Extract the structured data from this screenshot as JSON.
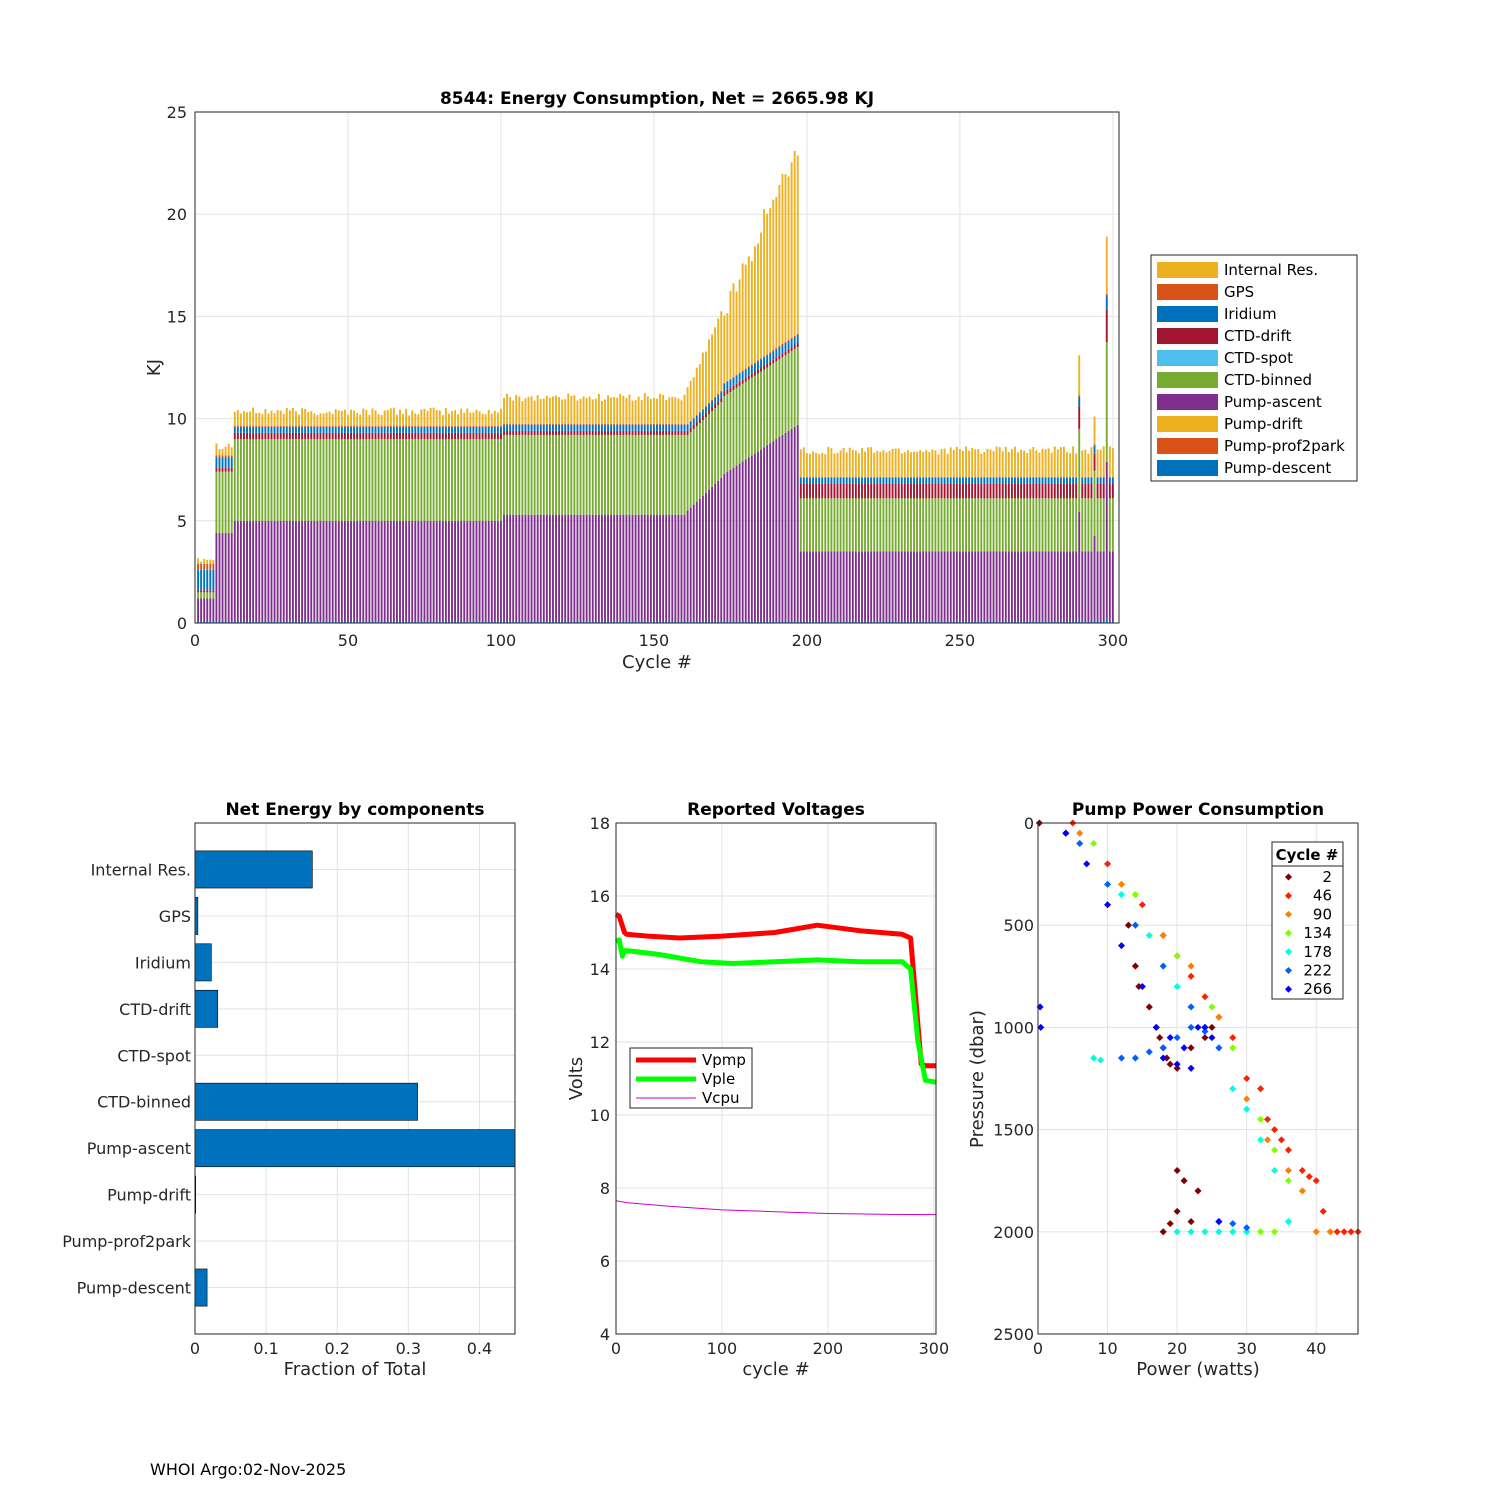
{
  "footer": "WHOI Argo:02-Nov-2025",
  "chart_data": [
    {
      "type": "bar",
      "stacked": true,
      "title": "8544: Energy Consumption,  Net = 2665.98 KJ",
      "xlabel": "Cycle #",
      "ylabel": "KJ",
      "xlim": [
        0,
        302
      ],
      "ylim": [
        0,
        25
      ],
      "xticks": [
        0,
        50,
        100,
        150,
        200,
        250,
        300
      ],
      "yticks": [
        0,
        5,
        10,
        15,
        20,
        25
      ],
      "grid": true,
      "legend_position": "outside-right",
      "legend": [
        "Internal Res.",
        "GPS",
        "Iridium",
        "CTD-drift",
        "CTD-spot",
        "CTD-binned",
        "Pump-ascent",
        "Pump-drift",
        "Pump-prof2park",
        "Pump-descent"
      ],
      "colors": {
        "Internal Res.": "#EDB120",
        "GPS": "#D95319",
        "Iridium": "#0072BD",
        "CTD-drift": "#A2142F",
        "CTD-spot": "#4DBEEE",
        "CTD-binned": "#77AC30",
        "Pump-ascent": "#7E2F8E",
        "Pump-drift": "#EDB120",
        "Pump-prof2park": "#D95319",
        "Pump-descent": "#0072BD"
      },
      "stack_order": [
        "Pump-descent",
        "Pump-prof2park",
        "Pump-drift",
        "Pump-ascent",
        "CTD-binned",
        "CTD-spot",
        "CTD-drift",
        "Iridium",
        "GPS",
        "Internal Res."
      ],
      "segments": [
        {
          "from": 1,
          "to": 6,
          "values": {
            "Pump-descent": 0.1,
            "Pump-ascent": 1.1,
            "CTD-binned": 0.3,
            "CTD-drift": 0.1,
            "Iridium": 1.0,
            "GPS": 0.3,
            "Internal Res.": 0.3
          }
        },
        {
          "from": 7,
          "to": 12,
          "values": {
            "Pump-descent": 0.1,
            "Pump-ascent": 4.3,
            "CTD-binned": 3.0,
            "CTD-drift": 0.2,
            "Iridium": 0.5,
            "GPS": 0.1,
            "Internal Res.": 0.5
          }
        },
        {
          "from": 13,
          "to": 100,
          "values": {
            "Pump-descent": 0.1,
            "Pump-ascent": 4.9,
            "CTD-binned": 4.0,
            "CTD-drift": 0.3,
            "Iridium": 0.3,
            "GPS": 0.05,
            "Internal Res.": 0.7
          }
        },
        {
          "from": 101,
          "to": 160,
          "values": {
            "Pump-descent": 0.1,
            "Pump-ascent": 5.2,
            "CTD-binned": 3.9,
            "CTD-drift": 0.2,
            "Iridium": 0.3,
            "GPS": 0.05,
            "Internal Res.": 1.3
          }
        },
        {
          "from": 161,
          "to": 172,
          "values": {
            "Pump-descent": 0.1,
            "Pump-ascent": 6.2,
            "CTD-binned": 3.7,
            "CTD-drift": 0.2,
            "Iridium": 0.3,
            "GPS": 0.05,
            "Internal Res.": 2.5
          }
        },
        {
          "from": 173,
          "to": 197,
          "values": {
            "Pump-descent": 0.1,
            "Pump-ascent": 9.0,
            "CTD-binned": 3.8,
            "CTD-drift": 0.2,
            "Iridium": 0.4,
            "GPS": 0.05,
            "Internal Res.": 8.5
          }
        },
        {
          "from": 198,
          "to": 300,
          "values": {
            "Pump-descent": 0.1,
            "Pump-ascent": 3.4,
            "CTD-binned": 2.6,
            "CTD-drift": 0.7,
            "Iridium": 0.3,
            "GPS": 0.05,
            "Internal Res.": 1.3
          }
        }
      ],
      "spikes": [
        {
          "cycle": 289,
          "total": 13.1
        },
        {
          "cycle": 294,
          "total": 10.1
        },
        {
          "cycle": 298,
          "total": 18.9
        }
      ]
    },
    {
      "type": "bar",
      "orientation": "horizontal",
      "title": "Net Energy by components",
      "xlabel": "Fraction of Total",
      "xlim": [
        0,
        0.45
      ],
      "xticks": [
        0,
        0.1,
        0.2,
        0.3,
        0.4
      ],
      "xtick_labels": [
        "0",
        "0.1",
        "0.2",
        "0.3",
        "0.4"
      ],
      "grid": true,
      "color": "#0072BD",
      "categories": [
        "Internal Res.",
        "GPS",
        "Iridium",
        "CTD-drift",
        "CTD-spot",
        "CTD-binned",
        "Pump-ascent",
        "Pump-drift",
        "Pump-prof2park",
        "Pump-descent"
      ],
      "values": [
        0.165,
        0.004,
        0.023,
        0.032,
        0.0,
        0.313,
        0.45,
        0.001,
        0.0,
        0.017
      ]
    },
    {
      "type": "line",
      "title": "Reported Voltages",
      "xlabel": "cycle #",
      "ylabel": "Volts",
      "xlim": [
        0,
        302
      ],
      "ylim": [
        4,
        18
      ],
      "xticks": [
        0,
        100,
        200,
        300
      ],
      "yticks": [
        4,
        6,
        8,
        10,
        12,
        14,
        16,
        18
      ],
      "grid": true,
      "legend_position": "middle-left",
      "series": [
        {
          "name": "Vpmp",
          "color": "#FF0000",
          "width": 5,
          "x": [
            0,
            3,
            8,
            10,
            30,
            60,
            100,
            150,
            190,
            230,
            270,
            278,
            282,
            288,
            292,
            302
          ],
          "y": [
            15.5,
            15.45,
            15.0,
            14.95,
            14.9,
            14.85,
            14.9,
            15.0,
            15.2,
            15.05,
            14.95,
            14.85,
            13.5,
            11.4,
            11.35,
            11.35
          ]
        },
        {
          "name": "Vple",
          "color": "#00FF00",
          "width": 5,
          "x": [
            0,
            3,
            6,
            8,
            12,
            40,
            80,
            110,
            150,
            190,
            230,
            270,
            278,
            285,
            292,
            302
          ],
          "y": [
            14.75,
            14.8,
            14.35,
            14.5,
            14.5,
            14.4,
            14.2,
            14.15,
            14.2,
            14.25,
            14.2,
            14.2,
            14.0,
            12.0,
            10.95,
            10.9
          ]
        },
        {
          "name": "Vcpu",
          "color": "#CC00CC",
          "width": 1,
          "x": [
            0,
            10,
            50,
            100,
            150,
            200,
            250,
            302
          ],
          "y": [
            7.65,
            7.6,
            7.5,
            7.4,
            7.35,
            7.3,
            7.28,
            7.27
          ]
        }
      ]
    },
    {
      "type": "scatter",
      "title": "Pump Power Consumption",
      "xlabel": "Power (watts)",
      "ylabel": "Pressure (dbar)",
      "xlim": [
        0,
        46
      ],
      "ylim": [
        0,
        2500
      ],
      "y_reversed": true,
      "xticks": [
        0,
        10,
        20,
        30,
        40
      ],
      "yticks": [
        0,
        500,
        1000,
        1500,
        2000,
        2500
      ],
      "grid": true,
      "legend_title": "Cycle #",
      "legend_position": "top-right",
      "series": [
        {
          "name": "2",
          "color": "#800000",
          "x": [
            0.2,
            4,
            13,
            14,
            14.5,
            16,
            17,
            17.5,
            18,
            18.5,
            19,
            20,
            22,
            24,
            25,
            20,
            21,
            23,
            20,
            22,
            19,
            18
          ],
          "y": [
            0,
            50,
            500,
            700,
            800,
            900,
            1000,
            1050,
            1100,
            1150,
            1180,
            1200,
            1100,
            1050,
            1000,
            1700,
            1750,
            1800,
            1900,
            1950,
            1960,
            2000
          ]
        },
        {
          "name": "46",
          "color": "#FF2000",
          "x": [
            5,
            10,
            15,
            18,
            20,
            22,
            24,
            26,
            28,
            30,
            32,
            33,
            34,
            35,
            36,
            38,
            39,
            40,
            41,
            43,
            44,
            45,
            46
          ],
          "y": [
            0,
            200,
            400,
            550,
            650,
            750,
            850,
            950,
            1050,
            1250,
            1300,
            1450,
            1500,
            1550,
            1600,
            1700,
            1730,
            1750,
            1900,
            2000,
            2000,
            2000,
            2000
          ]
        },
        {
          "name": "90",
          "color": "#FF8000",
          "x": [
            6,
            12,
            18,
            22,
            26,
            30,
            33,
            36,
            38,
            40,
            42
          ],
          "y": [
            50,
            300,
            550,
            700,
            950,
            1350,
            1550,
            1700,
            1800,
            2000,
            2000
          ]
        },
        {
          "name": "134",
          "color": "#80FF00",
          "x": [
            8,
            14,
            20,
            25,
            28,
            32,
            34,
            36,
            30,
            32,
            34
          ],
          "y": [
            100,
            350,
            650,
            900,
            1100,
            1450,
            1600,
            1750,
            2000,
            2000,
            2000
          ]
        },
        {
          "name": "178",
          "color": "#00FFE0",
          "x": [
            8,
            9,
            12,
            16,
            20,
            24,
            28,
            30,
            32,
            34,
            36,
            20,
            22,
            24,
            26,
            28,
            30
          ],
          "y": [
            1150,
            1160,
            350,
            550,
            800,
            1000,
            1300,
            1400,
            1550,
            1700,
            1950,
            2000,
            2000,
            2000,
            2000,
            2000,
            2000
          ]
        },
        {
          "name": "222",
          "color": "#0060FF",
          "x": [
            6,
            10,
            14,
            18,
            22,
            24,
            26,
            12,
            14,
            16,
            18,
            20,
            22,
            24,
            26,
            28,
            30
          ],
          "y": [
            100,
            300,
            500,
            700,
            900,
            1000,
            1100,
            1150,
            1150,
            1120,
            1100,
            1050,
            1000,
            1020,
            1950,
            1960,
            1980
          ]
        },
        {
          "name": "266",
          "color": "#0000FF",
          "x": [
            0.3,
            0.4,
            4,
            7,
            10,
            12,
            15,
            17,
            19,
            21,
            23,
            25,
            18,
            20,
            22,
            24,
            26
          ],
          "y": [
            900,
            1000,
            50,
            200,
            400,
            600,
            800,
            1000,
            1050,
            1100,
            1000,
            1050,
            1150,
            1180,
            1200,
            1000,
            1950
          ]
        }
      ]
    }
  ]
}
